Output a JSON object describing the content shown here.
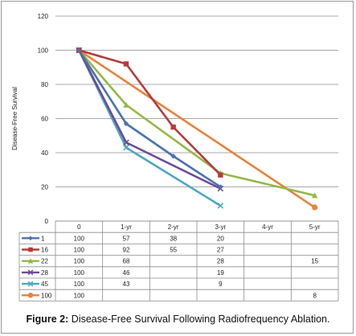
{
  "caption": {
    "label": "Figure 2:",
    "text": "Disease-Free Survival Following Radiofrequency Ablation."
  },
  "chart_data": {
    "type": "line",
    "ylabel": "Disease-Free Survival",
    "xlabel": "",
    "title": "",
    "ylim": [
      0,
      120
    ],
    "yticks": [
      0,
      20,
      40,
      60,
      80,
      100,
      120
    ],
    "grid": true,
    "categories": [
      "0",
      "1-yr",
      "2-yr",
      "3-yr",
      "4-yr",
      "5-yr"
    ],
    "legend_position": "data-table",
    "series": [
      {
        "name": "1",
        "color": "#4a72b0",
        "marker": "diamond",
        "values": [
          100,
          57,
          38,
          20,
          null,
          null
        ]
      },
      {
        "name": "16",
        "color": "#b53b3b",
        "marker": "square",
        "values": [
          100,
          92,
          55,
          27,
          null,
          null
        ]
      },
      {
        "name": "22",
        "color": "#93b845",
        "marker": "triangle",
        "values": [
          100,
          68,
          null,
          28,
          null,
          15
        ]
      },
      {
        "name": "28",
        "color": "#6f4a98",
        "marker": "x",
        "values": [
          100,
          46,
          null,
          19,
          null,
          null
        ]
      },
      {
        "name": "45",
        "color": "#4aa8c0",
        "marker": "x",
        "values": [
          100,
          43,
          null,
          9,
          null,
          null
        ]
      },
      {
        "name": "100",
        "color": "#e8823a",
        "marker": "circle",
        "values": [
          100,
          null,
          null,
          null,
          null,
          8
        ]
      }
    ]
  }
}
